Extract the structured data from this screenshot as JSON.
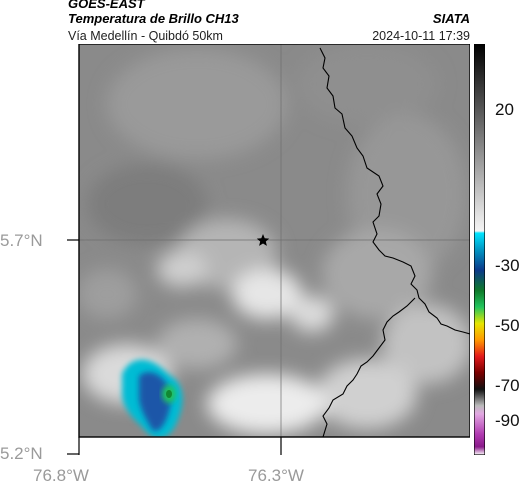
{
  "header": {
    "satellite": "GOES-EAST",
    "product": "Temperatura de Brillo CH13",
    "route": "Vía Medellín - Quibdó 50km",
    "org": "SIATA",
    "timestamp": "2024-10-11 17:39"
  },
  "map": {
    "y_ticks": [
      "5.7°N",
      "5.2°N"
    ],
    "x_ticks": [
      "76.8°W",
      "76.3°W"
    ],
    "marker_icon": "star-icon",
    "background_color": "#8a8a8a",
    "cold_colors": [
      "#00bcd4",
      "#1a56a8",
      "#22c55e"
    ]
  },
  "colorbar": {
    "labels": [
      "20",
      "-30",
      "-50",
      "-70",
      "-90"
    ]
  }
}
